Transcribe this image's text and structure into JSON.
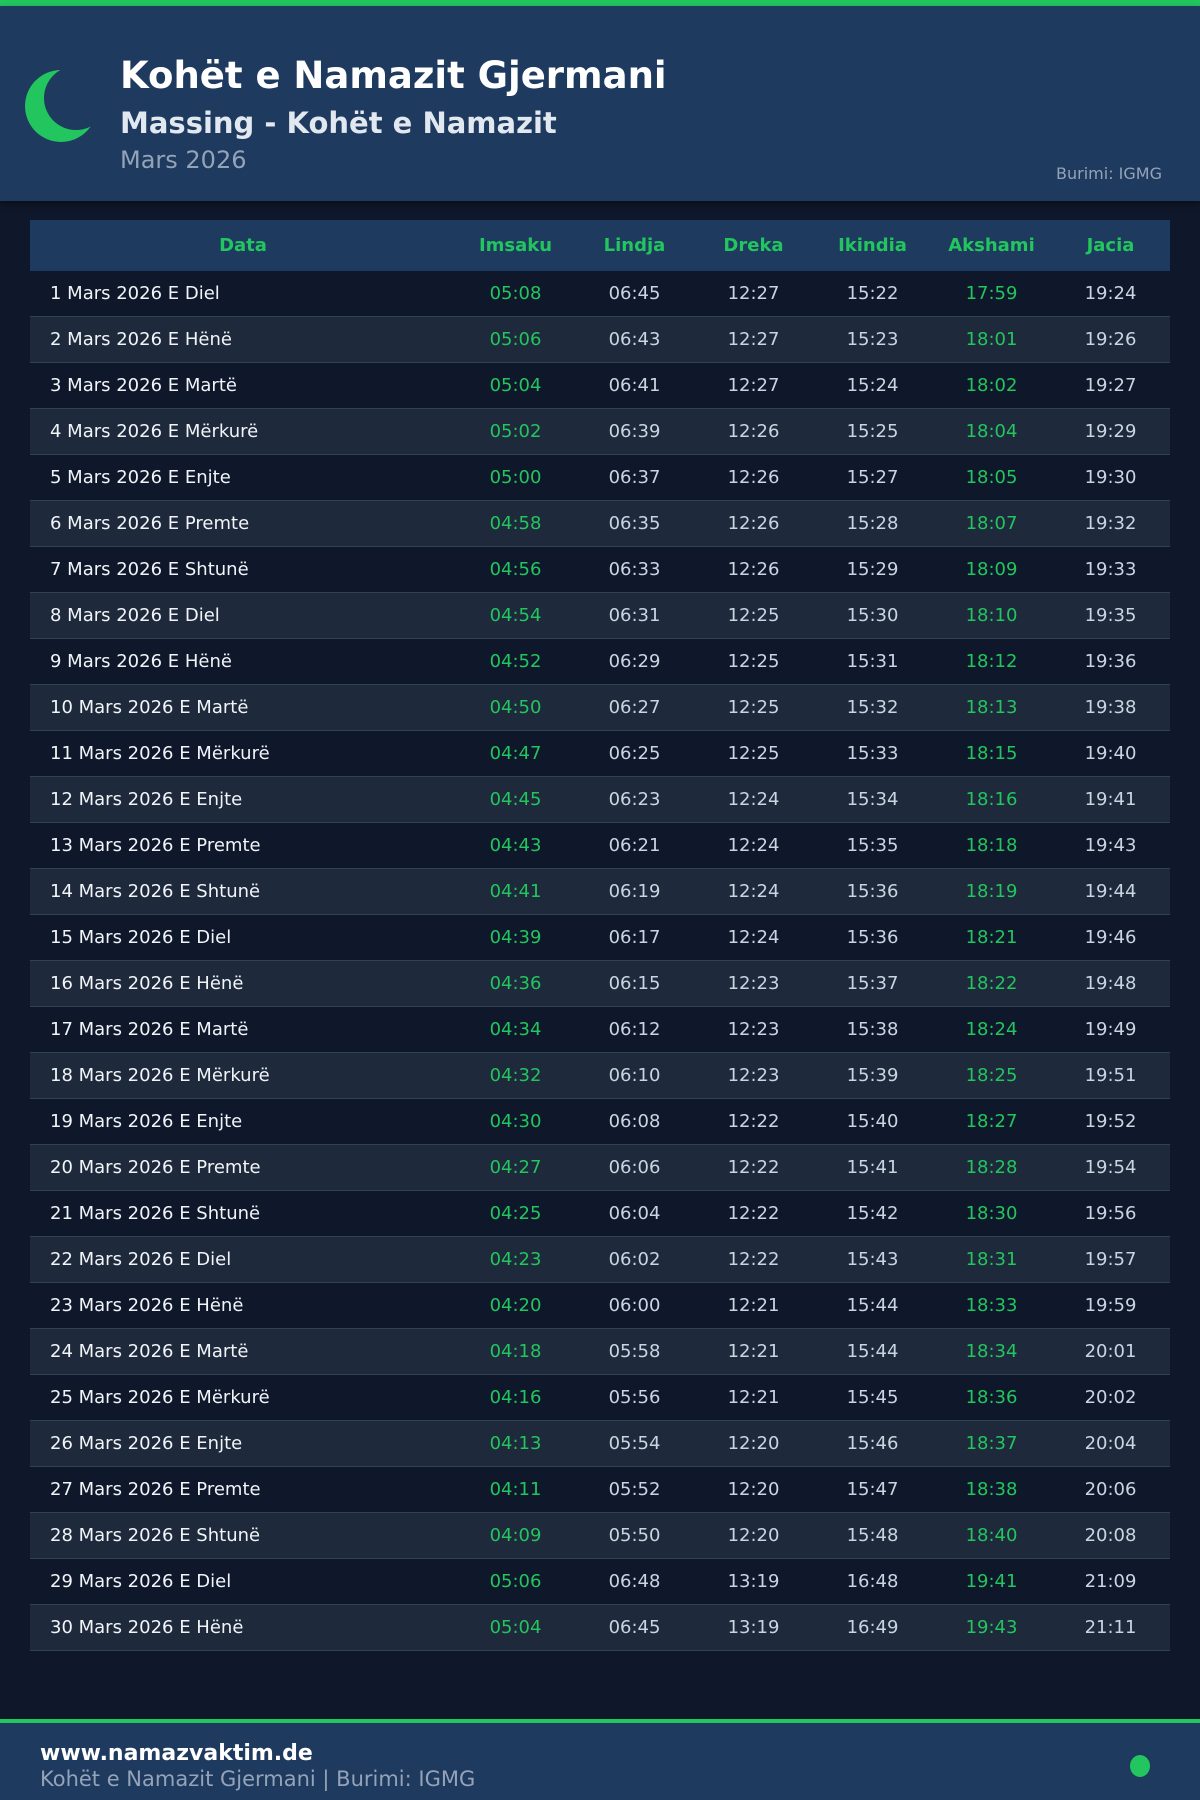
{
  "header": {
    "title": "Kohët e Namazit Gjermani",
    "subtitle": "Massing - Kohët e Namazit",
    "month": "Mars 2026",
    "source": "Burimi: IGMG",
    "icon": "crescent-moon-icon"
  },
  "colors": {
    "accent": "#22c55e",
    "header_bg": "#1e3a5f",
    "page_bg": "#0f172a",
    "alt_row": "#1e293b"
  },
  "table": {
    "columns": [
      "Data",
      "Imsaku",
      "Lindja",
      "Dreka",
      "Ikindia",
      "Akshami",
      "Jacia"
    ],
    "rows": [
      [
        "1 Mars 2026 E Diel",
        "05:08",
        "06:45",
        "12:27",
        "15:22",
        "17:59",
        "19:24"
      ],
      [
        "2 Mars 2026 E Hënë",
        "05:06",
        "06:43",
        "12:27",
        "15:23",
        "18:01",
        "19:26"
      ],
      [
        "3 Mars 2026 E Martë",
        "05:04",
        "06:41",
        "12:27",
        "15:24",
        "18:02",
        "19:27"
      ],
      [
        "4 Mars 2026 E Mërkurë",
        "05:02",
        "06:39",
        "12:26",
        "15:25",
        "18:04",
        "19:29"
      ],
      [
        "5 Mars 2026 E Enjte",
        "05:00",
        "06:37",
        "12:26",
        "15:27",
        "18:05",
        "19:30"
      ],
      [
        "6 Mars 2026 E Premte",
        "04:58",
        "06:35",
        "12:26",
        "15:28",
        "18:07",
        "19:32"
      ],
      [
        "7 Mars 2026 E Shtunë",
        "04:56",
        "06:33",
        "12:26",
        "15:29",
        "18:09",
        "19:33"
      ],
      [
        "8 Mars 2026 E Diel",
        "04:54",
        "06:31",
        "12:25",
        "15:30",
        "18:10",
        "19:35"
      ],
      [
        "9 Mars 2026 E Hënë",
        "04:52",
        "06:29",
        "12:25",
        "15:31",
        "18:12",
        "19:36"
      ],
      [
        "10 Mars 2026 E Martë",
        "04:50",
        "06:27",
        "12:25",
        "15:32",
        "18:13",
        "19:38"
      ],
      [
        "11 Mars 2026 E Mërkurë",
        "04:47",
        "06:25",
        "12:25",
        "15:33",
        "18:15",
        "19:40"
      ],
      [
        "12 Mars 2026 E Enjte",
        "04:45",
        "06:23",
        "12:24",
        "15:34",
        "18:16",
        "19:41"
      ],
      [
        "13 Mars 2026 E Premte",
        "04:43",
        "06:21",
        "12:24",
        "15:35",
        "18:18",
        "19:43"
      ],
      [
        "14 Mars 2026 E Shtunë",
        "04:41",
        "06:19",
        "12:24",
        "15:36",
        "18:19",
        "19:44"
      ],
      [
        "15 Mars 2026 E Diel",
        "04:39",
        "06:17",
        "12:24",
        "15:36",
        "18:21",
        "19:46"
      ],
      [
        "16 Mars 2026 E Hënë",
        "04:36",
        "06:15",
        "12:23",
        "15:37",
        "18:22",
        "19:48"
      ],
      [
        "17 Mars 2026 E Martë",
        "04:34",
        "06:12",
        "12:23",
        "15:38",
        "18:24",
        "19:49"
      ],
      [
        "18 Mars 2026 E Mërkurë",
        "04:32",
        "06:10",
        "12:23",
        "15:39",
        "18:25",
        "19:51"
      ],
      [
        "19 Mars 2026 E Enjte",
        "04:30",
        "06:08",
        "12:22",
        "15:40",
        "18:27",
        "19:52"
      ],
      [
        "20 Mars 2026 E Premte",
        "04:27",
        "06:06",
        "12:22",
        "15:41",
        "18:28",
        "19:54"
      ],
      [
        "21 Mars 2026 E Shtunë",
        "04:25",
        "06:04",
        "12:22",
        "15:42",
        "18:30",
        "19:56"
      ],
      [
        "22 Mars 2026 E Diel",
        "04:23",
        "06:02",
        "12:22",
        "15:43",
        "18:31",
        "19:57"
      ],
      [
        "23 Mars 2026 E Hënë",
        "04:20",
        "06:00",
        "12:21",
        "15:44",
        "18:33",
        "19:59"
      ],
      [
        "24 Mars 2026 E Martë",
        "04:18",
        "05:58",
        "12:21",
        "15:44",
        "18:34",
        "20:01"
      ],
      [
        "25 Mars 2026 E Mërkurë",
        "04:16",
        "05:56",
        "12:21",
        "15:45",
        "18:36",
        "20:02"
      ],
      [
        "26 Mars 2026 E Enjte",
        "04:13",
        "05:54",
        "12:20",
        "15:46",
        "18:37",
        "20:04"
      ],
      [
        "27 Mars 2026 E Premte",
        "04:11",
        "05:52",
        "12:20",
        "15:47",
        "18:38",
        "20:06"
      ],
      [
        "28 Mars 2026 E Shtunë",
        "04:09",
        "05:50",
        "12:20",
        "15:48",
        "18:40",
        "20:08"
      ],
      [
        "29 Mars 2026 E Diel",
        "05:06",
        "06:48",
        "13:19",
        "16:48",
        "19:41",
        "21:09"
      ],
      [
        "30 Mars 2026 E Hënë",
        "05:04",
        "06:45",
        "13:19",
        "16:49",
        "19:43",
        "21:11"
      ]
    ]
  },
  "footer": {
    "site": "www.namazvaktim.de",
    "text": "Kohët e Namazit Gjermani | Burimi: IGMG"
  }
}
